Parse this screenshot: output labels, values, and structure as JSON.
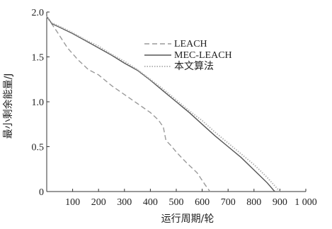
{
  "chart_data": {
    "type": "line",
    "title": "",
    "xlabel": "运行周期/轮",
    "ylabel": "最小剩余能量/J",
    "xlim": [
      0,
      1000
    ],
    "ylim": [
      0,
      2.0
    ],
    "x_ticks": [
      100,
      200,
      300,
      400,
      500,
      600,
      700,
      800,
      900,
      1000
    ],
    "x_tick_labels": [
      "100",
      "200",
      "300",
      "400",
      "500",
      "600",
      "700",
      "800",
      "900",
      "1 000"
    ],
    "y_ticks": [
      0,
      0.5,
      1.0,
      1.5,
      2.0
    ],
    "y_tick_labels": [
      "0",
      "0.5",
      "1.0",
      "1.5",
      "2.0"
    ],
    "grid": false,
    "legend_position": "top-center",
    "series": [
      {
        "name": "LEACH",
        "style": "dashed",
        "color": "#9a9a9a",
        "points": [
          [
            0,
            1.95
          ],
          [
            40,
            1.78
          ],
          [
            80,
            1.6
          ],
          [
            120,
            1.47
          ],
          [
            160,
            1.36
          ],
          [
            200,
            1.3
          ],
          [
            250,
            1.18
          ],
          [
            300,
            1.08
          ],
          [
            350,
            0.98
          ],
          [
            400,
            0.88
          ],
          [
            430,
            0.8
          ],
          [
            450,
            0.72
          ],
          [
            460,
            0.57
          ],
          [
            480,
            0.51
          ],
          [
            500,
            0.44
          ],
          [
            540,
            0.32
          ],
          [
            580,
            0.21
          ],
          [
            610,
            0.08
          ],
          [
            630,
            0.0
          ]
        ]
      },
      {
        "name": "MEC-LEACH",
        "style": "solid",
        "color": "#555555",
        "points": [
          [
            0,
            1.95
          ],
          [
            20,
            1.87
          ],
          [
            50,
            1.83
          ],
          [
            100,
            1.76
          ],
          [
            150,
            1.68
          ],
          [
            200,
            1.6
          ],
          [
            250,
            1.52
          ],
          [
            300,
            1.43
          ],
          [
            350,
            1.35
          ],
          [
            400,
            1.24
          ],
          [
            450,
            1.12
          ],
          [
            500,
            1.0
          ],
          [
            550,
            0.88
          ],
          [
            600,
            0.75
          ],
          [
            650,
            0.62
          ],
          [
            700,
            0.5
          ],
          [
            750,
            0.38
          ],
          [
            800,
            0.24
          ],
          [
            850,
            0.1
          ],
          [
            880,
            0.0
          ]
        ]
      },
      {
        "name": "本文算法",
        "style": "dotted",
        "color": "#b5b5b5",
        "points": [
          [
            0,
            1.95
          ],
          [
            20,
            1.88
          ],
          [
            50,
            1.84
          ],
          [
            100,
            1.77
          ],
          [
            150,
            1.69
          ],
          [
            200,
            1.62
          ],
          [
            250,
            1.53
          ],
          [
            300,
            1.45
          ],
          [
            350,
            1.36
          ],
          [
            400,
            1.25
          ],
          [
            450,
            1.14
          ],
          [
            500,
            1.02
          ],
          [
            550,
            0.9
          ],
          [
            600,
            0.79
          ],
          [
            650,
            0.66
          ],
          [
            700,
            0.54
          ],
          [
            750,
            0.42
          ],
          [
            800,
            0.3
          ],
          [
            850,
            0.16
          ],
          [
            900,
            0.0
          ]
        ]
      }
    ]
  }
}
